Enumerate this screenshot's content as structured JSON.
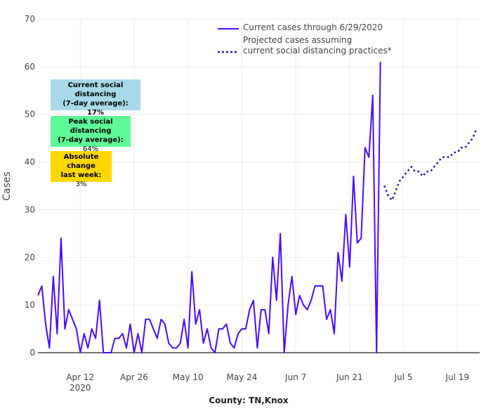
{
  "chart_data": {
    "type": "line",
    "title": "",
    "xlabel": "County: TN,Knox",
    "ylabel": "Cases",
    "ylim": [
      0,
      70
    ],
    "yticks": [
      "0",
      "10",
      "20",
      "30",
      "40",
      "50",
      "60",
      "70"
    ],
    "xticks": [
      {
        "date": "2020-04-12",
        "label": "Apr 12",
        "sub": "2020"
      },
      {
        "date": "2020-04-26",
        "label": "Apr 26",
        "sub": ""
      },
      {
        "date": "2020-05-10",
        "label": "May 10",
        "sub": ""
      },
      {
        "date": "2020-05-24",
        "label": "May 24",
        "sub": ""
      },
      {
        "date": "2020-06-07",
        "label": "Jun 7",
        "sub": ""
      },
      {
        "date": "2020-06-21",
        "label": "Jun 21",
        "sub": ""
      },
      {
        "date": "2020-07-05",
        "label": "Jul 5",
        "sub": ""
      },
      {
        "date": "2020-07-19",
        "label": "Jul 19",
        "sub": ""
      }
    ],
    "grid": true,
    "legend_position": "top-center",
    "series": [
      {
        "name": "Current cases through 6/29/2020",
        "style": "solid",
        "color": "#4a0bff",
        "start_date": "2020-04-01",
        "values": [
          12,
          14,
          6,
          1,
          16,
          4,
          24,
          5,
          9,
          7,
          5,
          0,
          4,
          1,
          5,
          3,
          11,
          0,
          0,
          0,
          3,
          3,
          4,
          1,
          6,
          0,
          4,
          0,
          7,
          7,
          5,
          3,
          7,
          6,
          2,
          1,
          1,
          2,
          7,
          1,
          17,
          6,
          9,
          2,
          5,
          1,
          0,
          5,
          5,
          6,
          2,
          1,
          4,
          5,
          5,
          9,
          11,
          1,
          9,
          9,
          4,
          20,
          11,
          25,
          0,
          10,
          16,
          8,
          12,
          10,
          9,
          11,
          14,
          14,
          14,
          7,
          9,
          4,
          21,
          15,
          29,
          18,
          37,
          23,
          24,
          43,
          41,
          54,
          0,
          61
        ]
      },
      {
        "name": "Projected cases assuming current social distancing practices*",
        "name_line1": "Projected cases assuming",
        "name_line2": "current social distancing practices*",
        "style": "dotted",
        "color": "#2a0a9e",
        "start_date": "2020-06-30",
        "values": [
          35,
          33,
          32,
          34,
          36,
          37,
          38,
          39,
          38,
          38,
          37,
          38,
          38,
          39,
          40,
          41,
          41,
          41,
          42,
          42,
          43,
          43,
          44,
          45,
          47
        ]
      }
    ]
  },
  "annotations": [
    {
      "title1": "Current social distancing",
      "title2": "(7-day average):",
      "value": "17%",
      "color": "#a8d9ea"
    },
    {
      "title1": "Peak social distancing",
      "title2": "(7-day average):",
      "value": "64%",
      "color": "#5ffa98"
    },
    {
      "title1": "Absolute change",
      "title2": "last week:",
      "value": "3%",
      "color": "#ffd700"
    }
  ]
}
